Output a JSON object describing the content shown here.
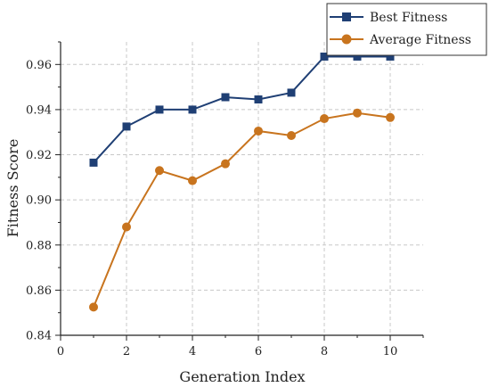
{
  "chart_data": {
    "type": "line",
    "title": "",
    "xlabel": "Generation Index",
    "ylabel": "Fitness Score",
    "xlim": [
      0,
      11
    ],
    "ylim": [
      0.84,
      0.97
    ],
    "xticks": [
      0,
      2,
      4,
      6,
      8,
      10
    ],
    "yticks": [
      0.84,
      0.86,
      0.88,
      0.9,
      0.92,
      0.94,
      0.96
    ],
    "grid": true,
    "legend_position": "top-right",
    "x": [
      1,
      2,
      3,
      4,
      5,
      6,
      7,
      8,
      9,
      10
    ],
    "series": [
      {
        "name": "Best Fitness",
        "color": "#1f3f74",
        "marker": "square",
        "values": [
          0.9165,
          0.9325,
          0.94,
          0.94,
          0.9455,
          0.9445,
          0.9475,
          0.9635,
          0.9635,
          0.9635
        ]
      },
      {
        "name": "Average Fitness",
        "color": "#c8741e",
        "marker": "circle",
        "values": [
          0.8525,
          0.888,
          0.913,
          0.9085,
          0.916,
          0.9305,
          0.9285,
          0.936,
          0.9385,
          0.9365
        ]
      }
    ]
  }
}
